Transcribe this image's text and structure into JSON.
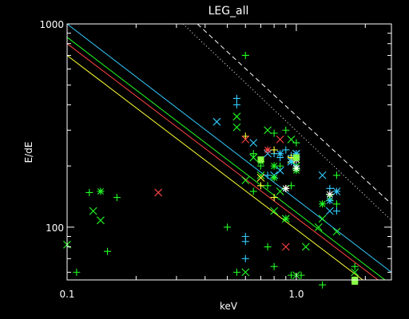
{
  "chart_data": {
    "type": "scatter",
    "title": "LEG_all",
    "xlabel": "keV",
    "ylabel": "E/dE",
    "xscale": "log",
    "yscale": "log",
    "xlim": [
      0.1,
      2.6
    ],
    "ylim": [
      55,
      1000
    ],
    "x_tick_labels": [
      {
        "value": 0.1,
        "label": "0.1"
      },
      {
        "value": 1.0,
        "label": "1.0"
      }
    ],
    "y_tick_labels": [
      {
        "value": 100,
        "label": "100"
      },
      {
        "value": 1000,
        "label": "1000"
      }
    ],
    "grid": false,
    "colors": {
      "background": "#000000",
      "axes": "#ffffff",
      "cyan": "#33ccff",
      "green": "#22ff22",
      "red": "#ff4444",
      "yellow": "#ffff33",
      "lightgreen": "#88ff44"
    },
    "reference_lines": [
      {
        "style": "dashed",
        "color": "#ffffff",
        "points": [
          [
            0.37,
            1000
          ],
          [
            2.6,
            130
          ]
        ]
      },
      {
        "style": "dotted",
        "color": "#ffffff",
        "points": [
          [
            0.32,
            1000
          ],
          [
            2.6,
            108
          ]
        ]
      },
      {
        "style": "solid",
        "color": "#33ccff",
        "points": [
          [
            0.1,
            1000
          ],
          [
            2.6,
            60
          ]
        ]
      },
      {
        "style": "solid",
        "color": "#22ff22",
        "points": [
          [
            0.1,
            860
          ],
          [
            2.6,
            52
          ]
        ]
      },
      {
        "style": "solid",
        "color": "#ff4444",
        "points": [
          [
            0.1,
            800
          ],
          [
            2.6,
            49
          ]
        ]
      },
      {
        "style": "solid",
        "color": "#ffff33",
        "points": [
          [
            0.1,
            700
          ],
          [
            2.6,
            43
          ]
        ]
      }
    ],
    "series": [
      {
        "marker": "plus",
        "color": "#22ff22",
        "points": [
          [
            0.11,
            60
          ],
          [
            0.125,
            148
          ],
          [
            0.15,
            76
          ],
          [
            0.165,
            140
          ],
          [
            0.5,
            100
          ],
          [
            0.55,
            60
          ],
          [
            0.6,
            700
          ],
          [
            0.65,
            150
          ],
          [
            0.65,
            230
          ],
          [
            0.7,
            200
          ],
          [
            0.75,
            160
          ],
          [
            0.75,
            80
          ],
          [
            0.8,
            290
          ],
          [
            0.8,
            64
          ],
          [
            0.85,
            200
          ],
          [
            0.9,
            300
          ],
          [
            0.95,
            160
          ],
          [
            0.95,
            58
          ],
          [
            1.0,
            260
          ],
          [
            1.05,
            58
          ],
          [
            1.3,
            52
          ],
          [
            1.5,
            180
          ],
          [
            1.5,
            130
          ],
          [
            1.8,
            64
          ],
          [
            1.8,
            55
          ]
        ]
      },
      {
        "marker": "plus",
        "color": "#33ccff",
        "points": [
          [
            0.55,
            430
          ],
          [
            0.55,
            400
          ],
          [
            0.6,
            70
          ],
          [
            0.6,
            85
          ],
          [
            0.6,
            90
          ],
          [
            0.75,
            180
          ],
          [
            0.8,
            230
          ],
          [
            0.85,
            220
          ],
          [
            0.9,
            240
          ],
          [
            0.95,
            225
          ],
          [
            1.0,
            220
          ],
          [
            1.0,
            200
          ],
          [
            1.4,
            155
          ],
          [
            1.5,
            150
          ],
          [
            1.5,
            120
          ]
        ]
      },
      {
        "marker": "plus",
        "color": "#ffff33",
        "points": [
          [
            0.6,
            280
          ],
          [
            0.7,
            160
          ],
          [
            0.8,
            240
          ],
          [
            0.8,
            140
          ],
          [
            0.9,
            155
          ],
          [
            0.95,
            220
          ]
        ]
      },
      {
        "marker": "cross",
        "color": "#22ff22",
        "points": [
          [
            0.1,
            82
          ],
          [
            0.13,
            120
          ],
          [
            0.14,
            108
          ],
          [
            0.55,
            310
          ],
          [
            0.55,
            350
          ],
          [
            0.6,
            60
          ],
          [
            0.6,
            170
          ],
          [
            0.65,
            220
          ],
          [
            0.7,
            180
          ],
          [
            0.75,
            300
          ],
          [
            0.8,
            120
          ],
          [
            0.85,
            150
          ],
          [
            0.9,
            110
          ],
          [
            0.95,
            270
          ],
          [
            1.0,
            200
          ],
          [
            1.0,
            58
          ],
          [
            1.1,
            80
          ],
          [
            1.25,
            100
          ],
          [
            1.3,
            110
          ],
          [
            1.4,
            140
          ],
          [
            1.5,
            95
          ],
          [
            1.8,
            60
          ]
        ]
      },
      {
        "marker": "cross",
        "color": "#33ccff",
        "points": [
          [
            0.45,
            330
          ],
          [
            0.65,
            260
          ],
          [
            0.75,
            230
          ],
          [
            0.8,
            180
          ],
          [
            0.85,
            190
          ],
          [
            0.95,
            210
          ],
          [
            1.0,
            230
          ],
          [
            1.3,
            180
          ],
          [
            1.4,
            120
          ],
          [
            1.5,
            150
          ]
        ]
      },
      {
        "marker": "cross",
        "color": "#ff4444",
        "points": [
          [
            0.25,
            148
          ],
          [
            0.6,
            270
          ],
          [
            0.85,
            270
          ],
          [
            0.9,
            80
          ]
        ]
      },
      {
        "marker": "cross",
        "color": "#ffff33",
        "points": [
          [
            0.7,
            175
          ],
          [
            0.95,
            215
          ]
        ]
      },
      {
        "marker": "asterisk",
        "color": "#22ff22",
        "points": [
          [
            0.14,
            150
          ],
          [
            0.7,
            210
          ],
          [
            0.8,
            200
          ],
          [
            0.8,
            175
          ],
          [
            0.9,
            110
          ],
          [
            1.0,
            190
          ],
          [
            1.3,
            130
          ],
          [
            1.8,
            55
          ]
        ]
      },
      {
        "marker": "asterisk",
        "color": "#33ccff",
        "points": [
          [
            0.85,
            230
          ],
          [
            0.95,
            210
          ],
          [
            1.0,
            230
          ],
          [
            1.4,
            135
          ]
        ]
      },
      {
        "marker": "asterisk",
        "color": "#ff4444",
        "points": [
          [
            0.75,
            240
          ]
        ]
      },
      {
        "marker": "asterisk",
        "color": "#ffffff",
        "points": [
          [
            0.9,
            155
          ],
          [
            1.0,
            215
          ],
          [
            1.0,
            195
          ],
          [
            1.4,
            145
          ]
        ]
      },
      {
        "marker": "square",
        "color": "#88ff44",
        "points": [
          [
            0.7,
            215
          ],
          [
            1.0,
            220
          ],
          [
            1.8,
            55
          ],
          [
            1.8,
            54
          ]
        ]
      }
    ]
  }
}
